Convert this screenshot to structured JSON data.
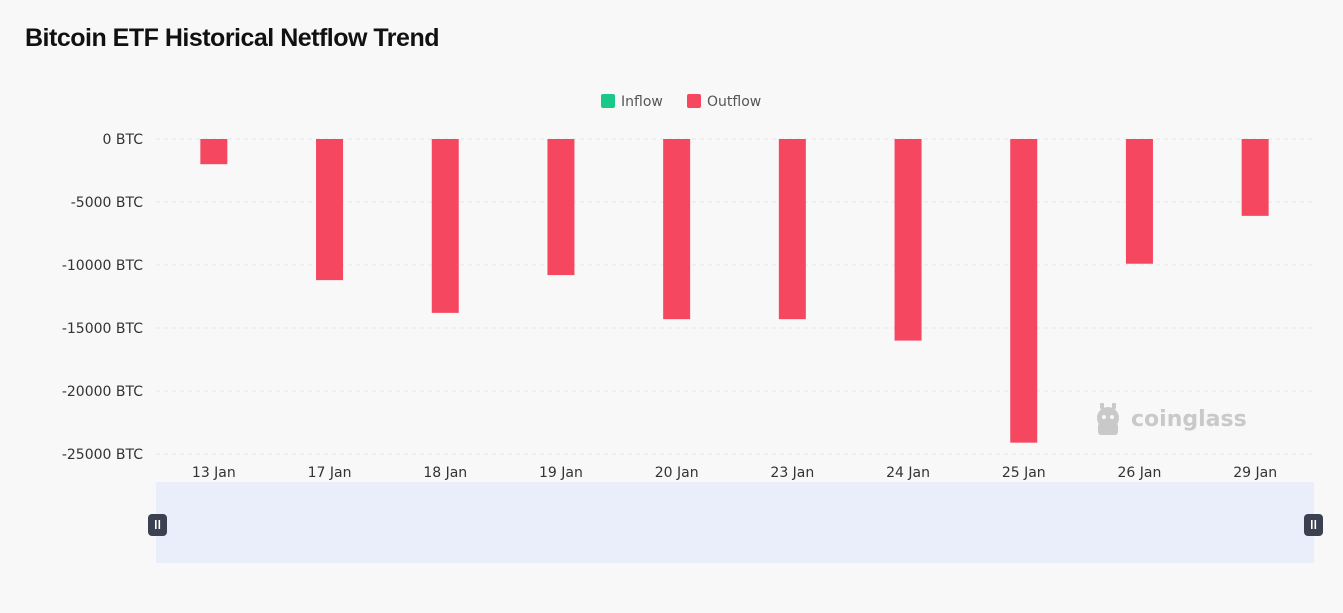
{
  "title": "Bitcoin ETF Historical Netflow Trend",
  "watermark": "coinglass",
  "colors": {
    "inflow": "#1ac98a",
    "outflow": "#f54860",
    "grid": "#e6e6e6",
    "zoom_fill": "#e9eefa",
    "handle": "#3b4150"
  },
  "icons": {
    "watermark_logo": "coinglass-logo-icon",
    "zoom_handle": "pause-bars-handle-icon"
  },
  "chart_data": {
    "type": "bar",
    "title": "Bitcoin ETF Historical Netflow Trend",
    "xlabel": "",
    "ylabel": "",
    "unit": "BTC",
    "ylim": [
      -25000,
      0
    ],
    "yticks": [
      0,
      -5000,
      -10000,
      -15000,
      -20000,
      -25000
    ],
    "ytick_labels": [
      "0 BTC",
      "-5000 BTC",
      "-10000 BTC",
      "-15000 BTC",
      "-20000 BTC",
      "-25000 BTC"
    ],
    "categories": [
      "13 Jan",
      "17 Jan",
      "18 Jan",
      "19 Jan",
      "20 Jan",
      "23 Jan",
      "24 Jan",
      "25 Jan",
      "26 Jan",
      "29 Jan"
    ],
    "series": [
      {
        "name": "Inflow",
        "values": [
          0,
          0,
          0,
          0,
          0,
          0,
          0,
          0,
          0,
          0
        ]
      },
      {
        "name": "Outflow",
        "values": [
          -2000,
          -11200,
          -13800,
          -10800,
          -14300,
          -14300,
          -16000,
          -24100,
          -9900,
          -6100
        ]
      }
    ],
    "legend": [
      "Inflow",
      "Outflow"
    ],
    "legend_position": "top-center",
    "grid": true
  }
}
